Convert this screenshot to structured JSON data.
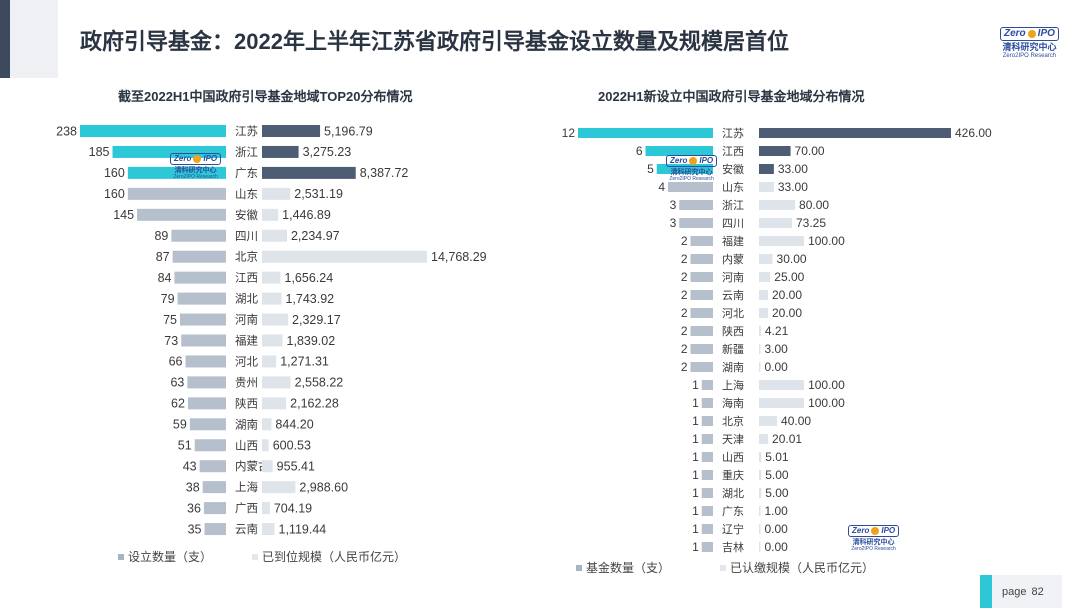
{
  "header": {
    "title": "政府引导基金：2022年上半年江苏省政府引导基金设立数量及规模居首位"
  },
  "logo": {
    "mark_left": "Zero",
    "mark_right": "IPO",
    "cn_name": "清科研究中心",
    "en_name": "Zero2IPO Research"
  },
  "colors": {
    "accent": "#2dc8d8",
    "dark": "#4d5d74",
    "mid": "#b6bfcc",
    "light": "#dfe3ea"
  },
  "chart_data": [
    {
      "type": "bar",
      "title": "截至2022H1中国政府引导基金地域TOP20分布情况",
      "categories": [
        "江苏",
        "浙江",
        "广东",
        "山东",
        "安徽",
        "四川",
        "北京",
        "江西",
        "湖北",
        "河南",
        "福建",
        "河北",
        "贵州",
        "陕西",
        "湖南",
        "山西",
        "内蒙古",
        "上海",
        "广西",
        "云南"
      ],
      "series": [
        {
          "name": "设立数量（支）",
          "values": [
            238,
            185,
            160,
            160,
            145,
            89,
            87,
            84,
            79,
            75,
            73,
            66,
            63,
            62,
            59,
            51,
            43,
            38,
            36,
            35
          ]
        },
        {
          "name": "已到位规模（人民币亿元）",
          "values": [
            5196.79,
            3275.23,
            8387.72,
            2531.19,
            1446.89,
            2234.97,
            14768.29,
            1656.24,
            1743.92,
            2329.17,
            1839.02,
            1271.31,
            2558.22,
            2162.28,
            844.2,
            600.53,
            955.41,
            2988.6,
            704.19,
            1119.44
          ]
        }
      ],
      "count_labels": [
        "238",
        "185",
        "160",
        "160",
        "145",
        "89",
        "87",
        "84",
        "79",
        "75",
        "73",
        "66",
        "63",
        "62",
        "59",
        "51",
        "43",
        "38",
        "36",
        "35"
      ],
      "value_labels": [
        "5,196.79",
        "3,275.23",
        "8,387.72",
        "2,531.19",
        "1,446.89",
        "2,234.97",
        "14,768.29",
        "1,656.24",
        "1,743.92",
        "2,329.17",
        "1,839.02",
        "1,271.31",
        "2,558.22",
        "2,162.28",
        "844.20",
        "600.53",
        "955.41",
        "2,988.60",
        "704.19",
        "1,119.44"
      ],
      "legend": [
        "设立数量（支）",
        "已到位规模（人民币亿元）"
      ],
      "legend_position": "bottom"
    },
    {
      "type": "bar",
      "title": "2022H1新设立中国政府引导基金地域分布情况",
      "categories": [
        "江苏",
        "江西",
        "安徽",
        "山东",
        "浙江",
        "四川",
        "福建",
        "内蒙",
        "河南",
        "云南",
        "河北",
        "陕西",
        "新疆",
        "湖南",
        "上海",
        "海南",
        "北京",
        "天津",
        "山西",
        "重庆",
        "湖北",
        "广东",
        "辽宁",
        "吉林"
      ],
      "series": [
        {
          "name": "基金数量（支）",
          "values": [
            12,
            6,
            5,
            4,
            3,
            3,
            2,
            2,
            2,
            2,
            2,
            2,
            2,
            2,
            1,
            1,
            1,
            1,
            1,
            1,
            1,
            1,
            1,
            1
          ]
        },
        {
          "name": "已认缴规模（人民币亿元）",
          "values": [
            426.0,
            70.0,
            33.0,
            33.0,
            80.0,
            73.25,
            100.0,
            30.0,
            25.0,
            20.0,
            20.0,
            4.21,
            3.0,
            0.0,
            100.0,
            100.0,
            40.0,
            20.01,
            5.01,
            5.0,
            5.0,
            1.0,
            0.0,
            0.0
          ]
        }
      ],
      "count_labels": [
        "12",
        "6",
        "5",
        "4",
        "3",
        "3",
        "2",
        "2",
        "2",
        "2",
        "2",
        "2",
        "2",
        "2",
        "1",
        "1",
        "1",
        "1",
        "1",
        "1",
        "1",
        "1",
        "1",
        "1"
      ],
      "value_labels": [
        "426.00",
        "70.00",
        "33.00",
        "33.00",
        "80.00",
        "73.25",
        "100.00",
        "30.00",
        "25.00",
        "20.00",
        "20.00",
        "4.21",
        "3.00",
        "0.00",
        "100.00",
        "100.00",
        "40.00",
        "20.01",
        "5.01",
        "5.00",
        "5.00",
        "1.00",
        "0.00",
        "0.00"
      ],
      "legend": [
        "基金数量（支）",
        "已认缴规模（人民币亿元）"
      ],
      "legend_position": "bottom"
    }
  ],
  "footer": {
    "page_label": "page",
    "page_number": "82"
  }
}
